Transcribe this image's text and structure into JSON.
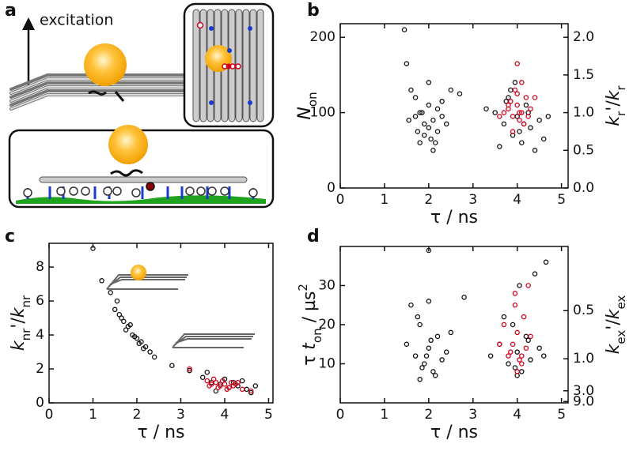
{
  "panel_a": {
    "letter": "a",
    "excitation": "excitation"
  },
  "chart_data": [
    {
      "type": "scatter",
      "letter": "b",
      "xlabel": [
        "τ / ns"
      ],
      "ylabel": [
        "N",
        "on"
      ],
      "y2label": [
        "k",
        "r",
        "'/",
        "k",
        "r"
      ],
      "xlim": [
        0,
        5.15
      ],
      "xticks": [
        0,
        1,
        2,
        3,
        4,
        5
      ],
      "ylim": [
        0,
        218
      ],
      "yticks": [
        0,
        100,
        200
      ],
      "y2lim": [
        0,
        2.18
      ],
      "y2scale": "linear",
      "y2ticks": [
        {
          "value": 0,
          "label": "0.0"
        },
        0.5,
        {
          "value": 1,
          "label": "1.0"
        },
        1.5,
        {
          "value": 2,
          "label": "2.0"
        }
      ],
      "series": [
        {
          "color": "#111111",
          "x": [
            1.5,
            1.7,
            1.8,
            1.9,
            2.0,
            2.1,
            2.2,
            2.3,
            1.6,
            1.8,
            2.0,
            2.2,
            2.4,
            1.9,
            2.1,
            1.7,
            2.0,
            2.3,
            1.85,
            2.05,
            1.45,
            1.55,
            2.5,
            1.75,
            2.15,
            3.5,
            3.7,
            3.8,
            3.9,
            4.0,
            4.1,
            4.2,
            4.3,
            4.5,
            3.6,
            3.85,
            4.05,
            4.25,
            4.6,
            3.75,
            4.15,
            4.4,
            3.95,
            4.7,
            3.3,
            2.7
          ],
          "y": [
            165,
            120,
            100,
            85,
            110,
            90,
            75,
            95,
            130,
            60,
            140,
            105,
            85,
            70,
            50,
            95,
            80,
            115,
            100,
            65,
            210,
            90,
            130,
            75,
            60,
            100,
            85,
            120,
            70,
            95,
            60,
            110,
            80,
            90,
            55,
            130,
            75,
            100,
            65,
            115,
            85,
            50,
            140,
            95,
            105,
            125
          ]
        },
        {
          "color": "#d0021b",
          "x": [
            3.8,
            3.9,
            4.0,
            4.1,
            4.2,
            3.95,
            4.05,
            3.85,
            4.15,
            4.3,
            3.7,
            4.0,
            4.1,
            3.9,
            4.25,
            4.0,
            3.8,
            4.4,
            3.6,
            4.05
          ],
          "y": [
            105,
            95,
            110,
            100,
            120,
            130,
            90,
            115,
            85,
            105,
            100,
            165,
            140,
            75,
            95,
            125,
            110,
            120,
            95,
            100
          ]
        }
      ]
    },
    {
      "type": "scatter",
      "letter": "c",
      "xlabel": [
        "τ / ns"
      ],
      "ylabel": [
        "k",
        "nr",
        "'/",
        "k",
        "nr"
      ],
      "xlim": [
        0,
        5.1
      ],
      "xticks": [
        0,
        1,
        2,
        3,
        4,
        5
      ],
      "ylim": [
        0,
        9.4
      ],
      "yticks": [
        0,
        2,
        4,
        6,
        8
      ],
      "series": [
        {
          "color": "#111111",
          "x": [
            1.0,
            1.2,
            1.4,
            1.5,
            1.6,
            1.7,
            1.8,
            1.9,
            2.0,
            2.1,
            2.2,
            2.3,
            1.75,
            1.95,
            2.05,
            1.65,
            2.4,
            1.85,
            2.15,
            1.55,
            2.8,
            3.2,
            3.5,
            3.7,
            3.9,
            4.1,
            4.3,
            4.5,
            3.6,
            4.0,
            4.2,
            4.6,
            3.8,
            4.4,
            4.7
          ],
          "y": [
            9.1,
            7.2,
            6.5,
            5.5,
            5.2,
            4.8,
            4.5,
            4.0,
            3.8,
            3.6,
            3.3,
            3.0,
            4.3,
            3.9,
            3.5,
            5.0,
            2.7,
            4.6,
            3.2,
            6.0,
            2.2,
            1.9,
            1.5,
            1.2,
            1.1,
            0.9,
            1.0,
            0.8,
            1.8,
            1.4,
            1.2,
            0.6,
            0.7,
            1.3,
            1.0
          ]
        },
        {
          "color": "#d0021b",
          "x": [
            3.6,
            3.7,
            3.8,
            3.9,
            4.0,
            4.1,
            4.2,
            4.3,
            4.4,
            3.75,
            3.95,
            4.05,
            4.25,
            3.85,
            4.15,
            3.2,
            4.6,
            3.65
          ],
          "y": [
            1.3,
            1.1,
            1.2,
            1.0,
            1.1,
            0.9,
            1.0,
            1.2,
            0.8,
            1.4,
            1.3,
            0.8,
            1.1,
            0.9,
            1.2,
            2.0,
            0.7,
            1.0
          ]
        }
      ]
    },
    {
      "type": "scatter",
      "letter": "d",
      "xlabel": [
        "τ / ns"
      ],
      "ylabel": [
        "τ ",
        "t",
        "on",
        " / µs",
        "2"
      ],
      "y2label": [
        "k",
        "ex",
        "'/",
        "k",
        "ex"
      ],
      "xlim": [
        0,
        5.15
      ],
      "xticks": [
        0,
        1,
        2,
        3,
        4,
        5
      ],
      "ylim": [
        0,
        40
      ],
      "yticks": [
        10,
        20,
        30
      ],
      "y2lim": [
        12,
        0.3
      ],
      "y2scale": "reciprocal",
      "y2ticks": [
        0.5,
        {
          "value": 1,
          "label": "1.0"
        },
        {
          "value": 3,
          "label": "3.0"
        },
        {
          "value": 9,
          "label": "9.0"
        }
      ],
      "series": [
        {
          "color": "#111111",
          "x": [
            1.5,
            1.7,
            1.8,
            1.9,
            2.0,
            2.1,
            2.2,
            2.3,
            1.6,
            2.4,
            1.85,
            2.05,
            1.75,
            1.95,
            2.15,
            2.5,
            2.0,
            1.8,
            3.4,
            3.6,
            3.8,
            3.9,
            4.0,
            4.1,
            4.2,
            4.3,
            4.5,
            3.7,
            3.95,
            4.05,
            4.25,
            4.6,
            4.0,
            4.4,
            2.0,
            2.8,
            4.65
          ],
          "y": [
            15,
            12,
            20,
            10,
            14,
            8,
            17,
            11,
            25,
            13,
            9,
            16,
            22,
            12,
            7,
            18,
            39,
            6,
            12,
            15,
            10,
            20,
            13,
            8,
            17,
            11,
            14,
            22,
            9,
            30,
            16,
            12,
            7,
            33,
            26,
            27,
            36
          ]
        },
        {
          "color": "#d0021b",
          "x": [
            3.8,
            3.9,
            4.0,
            4.1,
            4.2,
            3.7,
            3.95,
            4.05,
            4.15,
            3.85,
            4.3,
            4.0,
            3.6,
            4.25,
            3.95,
            4.1
          ],
          "y": [
            12,
            15,
            18,
            10,
            14,
            20,
            25,
            11,
            22,
            13,
            17,
            8,
            15,
            30,
            28,
            12
          ]
        }
      ]
    }
  ]
}
